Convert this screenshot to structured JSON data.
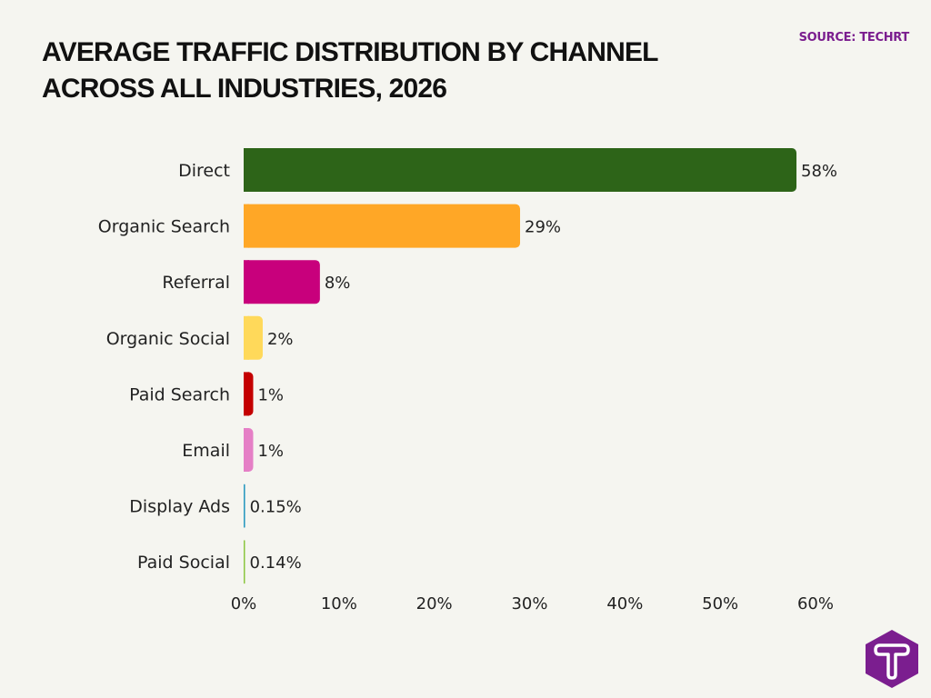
{
  "chart_data": {
    "type": "bar",
    "orientation": "horizontal",
    "title": "Average Traffic Distribution by Channel Across All Industries, 2026",
    "source": "SOURCE: TECHRT",
    "categories": [
      "Direct",
      "Organic Search",
      "Referral",
      "Organic Social",
      "Paid Search",
      "Email",
      "Display Ads",
      "Paid Social"
    ],
    "values": [
      58,
      29,
      8,
      2,
      1,
      1,
      0.15,
      0.14
    ],
    "data_labels": [
      "58%",
      "29%",
      "8%",
      "2%",
      "1%",
      "1%",
      "0.15%",
      "0.14%"
    ],
    "colors": [
      "#2d6418",
      "#ffa726",
      "#c8007c",
      "#ffd95a",
      "#c40000",
      "#e57fc6",
      "#2a9ac0",
      "#8cc63f"
    ],
    "xlim": [
      0,
      60
    ],
    "xticks": [
      0,
      10,
      20,
      30,
      40,
      50,
      60
    ],
    "xtick_labels": [
      "0%",
      "10%",
      "20%",
      "30%",
      "40%",
      "50%",
      "60%"
    ],
    "grid": false,
    "legend": "none"
  },
  "brand": {
    "logo_color": "#7b1e8f",
    "logo": "T"
  }
}
